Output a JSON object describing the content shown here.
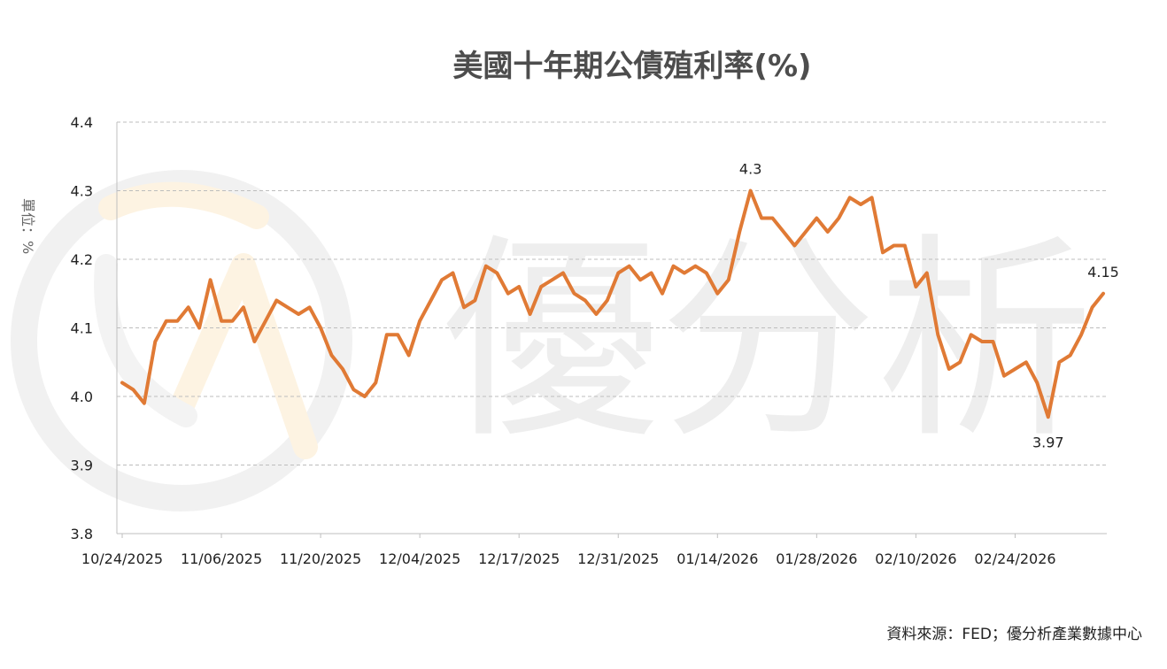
{
  "chart_data": {
    "type": "line",
    "title": "美國十年期公債殖利率(%)",
    "ylabel": "單位：%",
    "ylim": [
      3.8,
      4.4
    ],
    "yticks": [
      "3.8",
      "3.9",
      "4.0",
      "4.1",
      "4.2",
      "4.3",
      "4.4"
    ],
    "xtick_labels": [
      "10/24/2025",
      "11/06/2025",
      "11/20/2025",
      "12/04/2025",
      "12/17/2025",
      "12/31/2025",
      "01/14/2026",
      "01/28/2026",
      "02/10/2026",
      "02/24/2026"
    ],
    "xtick_every": 9,
    "grid": true,
    "line_color": "#e07a35",
    "series": [
      {
        "values": [
          4.02,
          4.01,
          3.99,
          4.08,
          4.11,
          4.11,
          4.13,
          4.1,
          4.17,
          4.11,
          4.11,
          4.13,
          4.08,
          4.11,
          4.14,
          4.13,
          4.12,
          4.13,
          4.1,
          4.06,
          4.04,
          4.01,
          4.0,
          4.02,
          4.09,
          4.09,
          4.06,
          4.11,
          4.14,
          4.17,
          4.18,
          4.13,
          4.14,
          4.19,
          4.18,
          4.15,
          4.16,
          4.12,
          4.16,
          4.17,
          4.18,
          4.15,
          4.14,
          4.12,
          4.14,
          4.18,
          4.19,
          4.17,
          4.18,
          4.15,
          4.19,
          4.18,
          4.19,
          4.18,
          4.15,
          4.17,
          4.24,
          4.3,
          4.26,
          4.26,
          4.24,
          4.22,
          4.24,
          4.26,
          4.24,
          4.26,
          4.29,
          4.28,
          4.29,
          4.21,
          4.22,
          4.22,
          4.16,
          4.18,
          4.09,
          4.04,
          4.05,
          4.09,
          4.08,
          4.08,
          4.03,
          4.04,
          4.05,
          4.02,
          3.97,
          4.05,
          4.06,
          4.09,
          4.13,
          4.15
        ]
      }
    ],
    "annotations": [
      {
        "index": 57,
        "text": "4.3",
        "pos": "above"
      },
      {
        "index": 84,
        "text": "3.97",
        "pos": "below"
      },
      {
        "index": 89,
        "text": "4.15",
        "pos": "above"
      }
    ]
  },
  "watermark": {
    "text": "優分析"
  },
  "source": {
    "text": "資料來源：FED；優分析產業數據中心"
  }
}
